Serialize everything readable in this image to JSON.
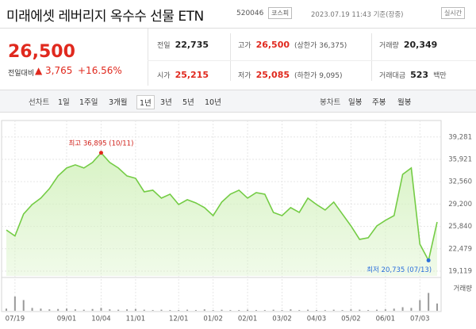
{
  "header": {
    "title": "미래에셋 레버리지 옥수수 선물 ETN",
    "code": "520046",
    "market": "코스피",
    "timestamp": "2023.07.19 11:43 기준(장중)",
    "status": "실시간"
  },
  "quote": {
    "price": "26,500",
    "change_label": "전일대비",
    "change": "3,765",
    "change_rate": "+16.56%"
  },
  "stats": [
    [
      {
        "label": "전일",
        "value": "22,735"
      },
      {
        "label": "고가",
        "value": "26,500",
        "note": "(상한가 36,375)",
        "color": "#e0291e"
      },
      {
        "label": "거래량",
        "value": "20,349"
      }
    ],
    [
      {
        "label": "시가",
        "value": "25,215",
        "color": "#e0291e"
      },
      {
        "label": "저가",
        "value": "25,085",
        "note": "(하한가 9,095)",
        "color": "#e0291e"
      },
      {
        "label": "거래대금",
        "value": "523",
        "note": "백만"
      }
    ]
  ],
  "tabs": {
    "line_label": "선차트",
    "periods": [
      "1일",
      "1주일",
      "3개월",
      "1년",
      "3년",
      "5년",
      "10년"
    ],
    "selected": 3,
    "candle_label": "봉차트",
    "candles": [
      "일봉",
      "주봉",
      "월봉"
    ]
  },
  "chart_data": {
    "type": "line",
    "categories": [
      null,
      "07/19",
      null,
      null,
      null,
      null,
      null,
      "09/01",
      null,
      null,
      null,
      "10/04",
      null,
      null,
      null,
      "11/01",
      null,
      null,
      null,
      null,
      "12/01",
      null,
      null,
      null,
      "01/02",
      null,
      null,
      null,
      "02/01",
      null,
      null,
      null,
      "03/02",
      null,
      null,
      null,
      "04/03",
      null,
      null,
      null,
      "05/02",
      null,
      null,
      null,
      "06/01",
      null,
      null,
      null,
      "07/03",
      null,
      null
    ],
    "values": [
      25300,
      24400,
      27700,
      29130,
      30090,
      31520,
      33420,
      34620,
      35090,
      34620,
      35450,
      36895,
      35450,
      34620,
      33420,
      33070,
      31040,
      31280,
      30090,
      30680,
      29130,
      29850,
      29370,
      28660,
      27460,
      29490,
      30680,
      31280,
      30090,
      30920,
      30680,
      27940,
      27460,
      28660,
      27940,
      30090,
      29130,
      28300,
      29490,
      27700,
      25910,
      23890,
      24130,
      25910,
      26750,
      27460,
      33660,
      34620,
      23170,
      20735,
      26500
    ],
    "color": "#74cc45",
    "fill": "#d6f2c2",
    "ylim": [
      19119,
      40800
    ],
    "yticks": [
      {
        "value": 39281,
        "label": "39,281"
      },
      {
        "value": 35921,
        "label": "35,921"
      },
      {
        "value": 32560,
        "label": "32,560"
      },
      {
        "value": 29200,
        "label": "29,200"
      },
      {
        "value": 25840,
        "label": "25,840"
      },
      {
        "value": 22479,
        "label": "22,479"
      },
      {
        "value": 19119,
        "label": "19,119"
      }
    ],
    "grid": true,
    "annotations": {
      "high": "최고 36,895 (10/11)",
      "low": "최저 20,735 (07/13)"
    },
    "volume_label": "거래량",
    "volume": [
      6000,
      40000,
      30000,
      8000,
      6000,
      4000,
      5000,
      6000,
      4000,
      3000,
      5000,
      8000,
      4000,
      3000,
      4000,
      5000,
      3000,
      2000,
      3000,
      2000,
      2000,
      3000,
      2000,
      4000,
      2000,
      3000,
      2000,
      2000,
      3000,
      2000,
      2000,
      3000,
      2000,
      4000,
      2000,
      3000,
      2000,
      2000,
      3000,
      2000,
      4000,
      3000,
      2000,
      3000,
      4000,
      6000,
      10000,
      8000,
      30000,
      50000,
      20349
    ],
    "volume_lim": [
      0,
      80000
    ],
    "volume_color": "#9a9a9a"
  }
}
